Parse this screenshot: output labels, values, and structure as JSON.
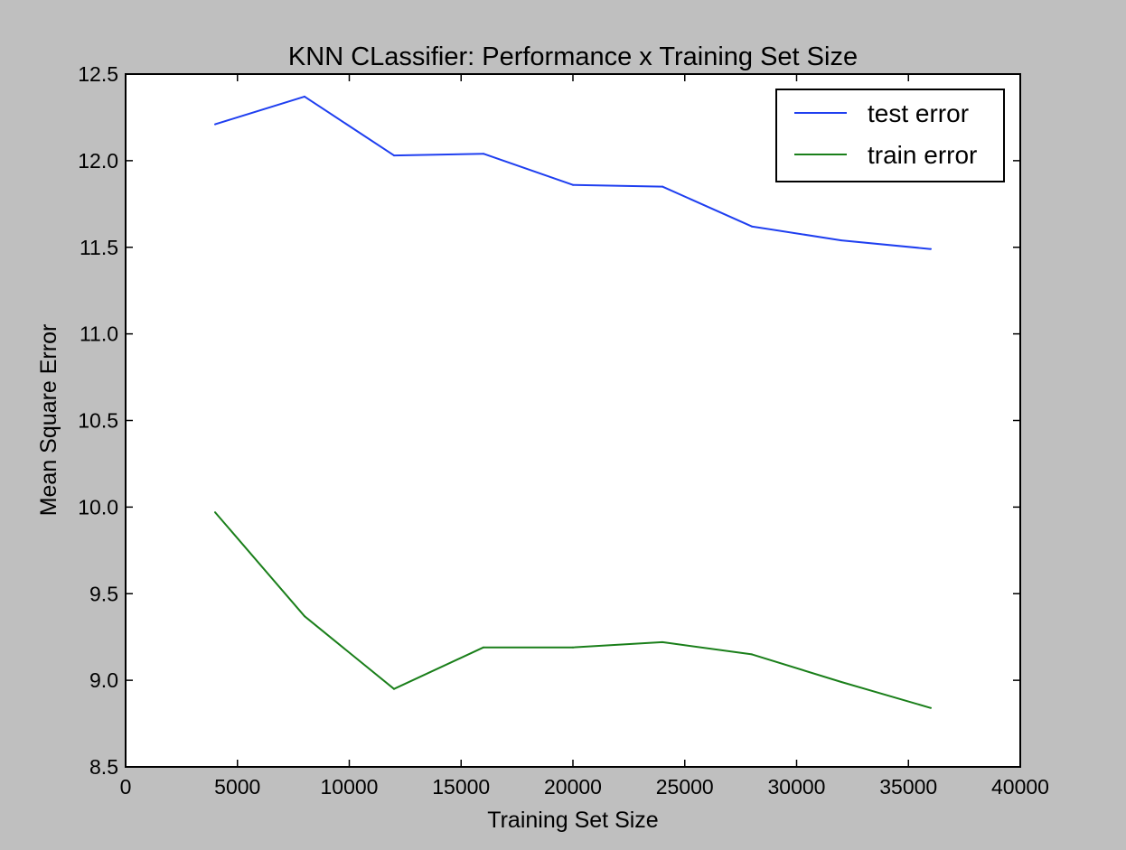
{
  "chart_data": {
    "type": "line",
    "title": "KNN CLassifier: Performance x Training Set Size",
    "xlabel": "Training Set Size",
    "ylabel": "Mean Square Error",
    "xlim": [
      0,
      40000
    ],
    "ylim": [
      8.5,
      12.5
    ],
    "x_ticks": [
      0,
      5000,
      10000,
      15000,
      20000,
      25000,
      30000,
      35000,
      40000
    ],
    "x_tick_labels": [
      "0",
      "5000",
      "10000",
      "15000",
      "20000",
      "25000",
      "30000",
      "35000",
      "40000"
    ],
    "y_ticks": [
      8.5,
      9.0,
      9.5,
      10.0,
      10.5,
      11.0,
      11.5,
      12.0,
      12.5
    ],
    "y_tick_labels": [
      "8.5",
      "9.0",
      "9.5",
      "10.0",
      "10.5",
      "11.0",
      "11.5",
      "12.0",
      "12.5"
    ],
    "grid": false,
    "legend_position": "top-right",
    "x": [
      4000,
      8000,
      12000,
      16000,
      20000,
      24000,
      28000,
      32000,
      36000
    ],
    "series": [
      {
        "name": "test error",
        "color": "#1f3ff0",
        "values": [
          12.21,
          12.37,
          12.03,
          12.04,
          11.86,
          11.85,
          11.62,
          11.54,
          11.49
        ]
      },
      {
        "name": "train error",
        "color": "#1a7f1a",
        "values": [
          9.97,
          9.37,
          8.95,
          9.19,
          9.19,
          9.22,
          9.15,
          8.99,
          8.84
        ]
      }
    ]
  }
}
